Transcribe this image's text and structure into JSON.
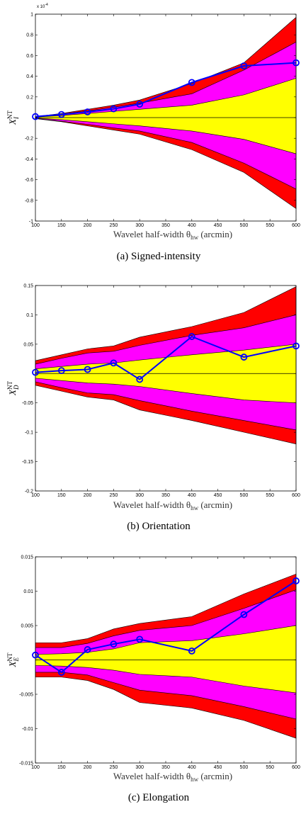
{
  "chart_data": [
    {
      "type": "area",
      "caption": "(a) Signed-intensity",
      "ylabel_main": "X",
      "ylabel_sup": "NT",
      "ylabel_sub": "I",
      "xlabel": "Wavelet half-width θ",
      "xlabel_sub": "hw",
      "xlabel_unit": "(arcmin)",
      "scale_label": "x 10",
      "scale_exp": "-4",
      "xlim": [
        100,
        600
      ],
      "ylim": [
        -1,
        1
      ],
      "xticks": [
        100,
        150,
        200,
        250,
        300,
        350,
        400,
        450,
        500,
        550,
        600
      ],
      "xtick_labels": [
        "100",
        "150",
        "200",
        "250",
        "300",
        "350",
        "400",
        "450",
        "500",
        "550",
        "600"
      ],
      "yticks": [
        -1,
        -0.8,
        -0.6,
        -0.4,
        -0.2,
        0,
        0.2,
        0.4,
        0.6,
        0.8,
        1
      ],
      "ytick_labels": [
        "-1",
        "-0.8",
        "-0.6",
        "-0.4",
        "-0.2",
        "",
        "0.2",
        "0.4",
        "0.6",
        "0.8",
        "1"
      ],
      "x": [
        100,
        150,
        200,
        250,
        300,
        400,
        500,
        600
      ],
      "band_red": {
        "upper": [
          0.01,
          0.04,
          0.08,
          0.12,
          0.17,
          0.33,
          0.53,
          0.97
        ],
        "lower": [
          -0.01,
          -0.04,
          -0.08,
          -0.12,
          -0.16,
          -0.31,
          -0.53,
          -0.88
        ]
      },
      "band_magenta": {
        "upper": [
          0.008,
          0.035,
          0.065,
          0.1,
          0.14,
          0.23,
          0.46,
          0.73
        ],
        "lower": [
          -0.008,
          -0.035,
          -0.065,
          -0.1,
          -0.13,
          -0.24,
          -0.44,
          -0.69
        ]
      },
      "band_yellow": {
        "upper": [
          0.005,
          0.02,
          0.04,
          0.06,
          0.08,
          0.12,
          0.22,
          0.38
        ],
        "lower": [
          -0.005,
          -0.02,
          -0.04,
          -0.06,
          -0.08,
          -0.13,
          -0.21,
          -0.35
        ]
      },
      "series": [
        {
          "values": [
            0.01,
            0.03,
            0.055,
            0.085,
            0.13,
            0.34,
            0.5,
            0.53
          ]
        }
      ],
      "colors": {
        "red": "#ff0000",
        "magenta": "#ff00ff",
        "yellow": "#ffff00",
        "series": "#0000ff"
      }
    },
    {
      "type": "area",
      "caption": "(b) Orientation",
      "ylabel_main": "X",
      "ylabel_sup": "NT",
      "ylabel_sub": "D",
      "xlabel": "Wavelet half-width θ",
      "xlabel_sub": "hw",
      "xlabel_unit": "(arcmin)",
      "xlim": [
        100,
        600
      ],
      "ylim": [
        -0.2,
        0.15
      ],
      "xticks": [
        100,
        150,
        200,
        250,
        300,
        350,
        400,
        450,
        500,
        550,
        600
      ],
      "xtick_labels": [
        "100",
        "150",
        "200",
        "250",
        "300",
        "350",
        "400",
        "450",
        "500",
        "550",
        "600"
      ],
      "yticks": [
        -0.2,
        -0.15,
        -0.1,
        -0.05,
        0,
        0.05,
        0.1,
        0.15
      ],
      "ytick_labels": [
        "-0.2",
        "-0.15",
        "-0.1",
        "-0.05",
        "",
        "0.05",
        "0.1",
        "0.15"
      ],
      "x": [
        100,
        150,
        200,
        250,
        300,
        400,
        500,
        600
      ],
      "band_red": {
        "upper": [
          0.022,
          0.032,
          0.042,
          0.047,
          0.062,
          0.08,
          0.104,
          0.148
        ],
        "lower": [
          -0.02,
          -0.03,
          -0.04,
          -0.045,
          -0.062,
          -0.08,
          -0.1,
          -0.12
        ]
      },
      "band_magenta": {
        "upper": [
          0.016,
          0.026,
          0.035,
          0.038,
          0.048,
          0.065,
          0.078,
          0.1
        ],
        "lower": [
          -0.014,
          -0.024,
          -0.033,
          -0.036,
          -0.046,
          -0.064,
          -0.08,
          -0.096
        ]
      },
      "band_yellow": {
        "upper": [
          0.008,
          0.012,
          0.016,
          0.018,
          0.023,
          0.032,
          0.04,
          0.05
        ],
        "lower": [
          -0.008,
          -0.012,
          -0.016,
          -0.018,
          -0.022,
          -0.034,
          -0.045,
          -0.05
        ]
      },
      "series": [
        {
          "values": [
            0.002,
            0.005,
            0.007,
            0.018,
            -0.01,
            0.063,
            0.028,
            0.047
          ]
        }
      ],
      "colors": {
        "red": "#ff0000",
        "magenta": "#ff00ff",
        "yellow": "#ffff00",
        "series": "#0000ff"
      }
    },
    {
      "type": "area",
      "caption": "(c) Elongation",
      "ylabel_main": "X",
      "ylabel_sup": "NT",
      "ylabel_sub": "E",
      "xlabel": "Wavelet half-width θ",
      "xlabel_sub": "hw",
      "xlabel_unit": "(arcmin)",
      "xlim": [
        100,
        600
      ],
      "ylim": [
        -0.015,
        0.015
      ],
      "xticks": [
        100,
        150,
        200,
        250,
        300,
        350,
        400,
        450,
        500,
        550,
        600
      ],
      "xtick_labels": [
        "100",
        "150",
        "200",
        "250",
        "300",
        "350",
        "400",
        "450",
        "500",
        "550",
        "600"
      ],
      "yticks": [
        -0.015,
        -0.01,
        -0.005,
        0,
        0.005,
        0.01,
        0.015
      ],
      "ytick_labels": [
        "-0.015",
        "-0.01",
        "-0.005",
        "",
        "0.005",
        "0.01",
        "0.015"
      ],
      "x": [
        100,
        150,
        200,
        250,
        300,
        400,
        500,
        600
      ],
      "band_red": {
        "upper": [
          0.0025,
          0.0025,
          0.0031,
          0.0045,
          0.0053,
          0.0063,
          0.0096,
          0.0125
        ],
        "lower": [
          -0.0025,
          -0.0025,
          -0.003,
          -0.0043,
          -0.0062,
          -0.007,
          -0.0088,
          -0.0114
        ]
      },
      "band_magenta": {
        "upper": [
          0.0018,
          0.0018,
          0.0024,
          0.0035,
          0.0043,
          0.005,
          0.0075,
          0.0102
        ],
        "lower": [
          -0.0018,
          -0.0018,
          -0.0022,
          -0.0033,
          -0.0044,
          -0.0052,
          -0.0068,
          -0.0086
        ]
      },
      "band_yellow": {
        "upper": [
          0.0008,
          0.0009,
          0.0011,
          0.0016,
          0.0025,
          0.0028,
          0.0038,
          0.005
        ],
        "lower": [
          -0.0008,
          -0.0009,
          -0.0011,
          -0.0015,
          -0.0021,
          -0.0025,
          -0.0038,
          -0.0048
        ]
      },
      "series": [
        {
          "values": [
            0.0007,
            -0.0018,
            0.0015,
            0.0023,
            0.003,
            0.0013,
            0.0066,
            0.0115
          ]
        }
      ],
      "colors": {
        "red": "#ff0000",
        "magenta": "#ff00ff",
        "yellow": "#ffff00",
        "series": "#0000ff"
      }
    }
  ]
}
